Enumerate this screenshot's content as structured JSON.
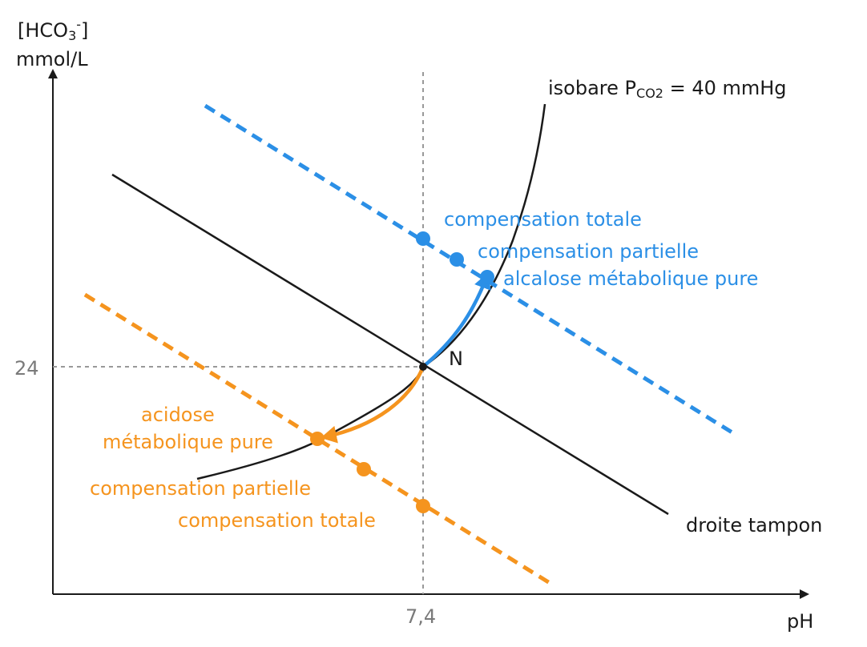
{
  "axes": {
    "y_label_line1": "[HCO",
    "y_label_sub": "3",
    "y_label_sup": "-",
    "y_label_close": "]",
    "y_label_line2": "mmol/L",
    "x_label": "pH",
    "y_tick": "24",
    "x_tick": "7,4"
  },
  "curves": {
    "isobare_prefix": "isobare P",
    "isobare_sub": "CO2",
    "isobare_suffix": " = 40 mmHg",
    "buffer_line": "droite tampon",
    "point_n": "N"
  },
  "alkalosis": {
    "color": "#2b8fe6",
    "total_compensation": "compensation totale",
    "partial_compensation": "compensation partielle",
    "pure": "alcalose métabolique pure"
  },
  "acidosis": {
    "color": "#f5941e",
    "pure_line1": "acidose",
    "pure_line2": "métabolique pure",
    "partial_compensation": "compensation partielle",
    "total_compensation": "compensation totale"
  }
}
